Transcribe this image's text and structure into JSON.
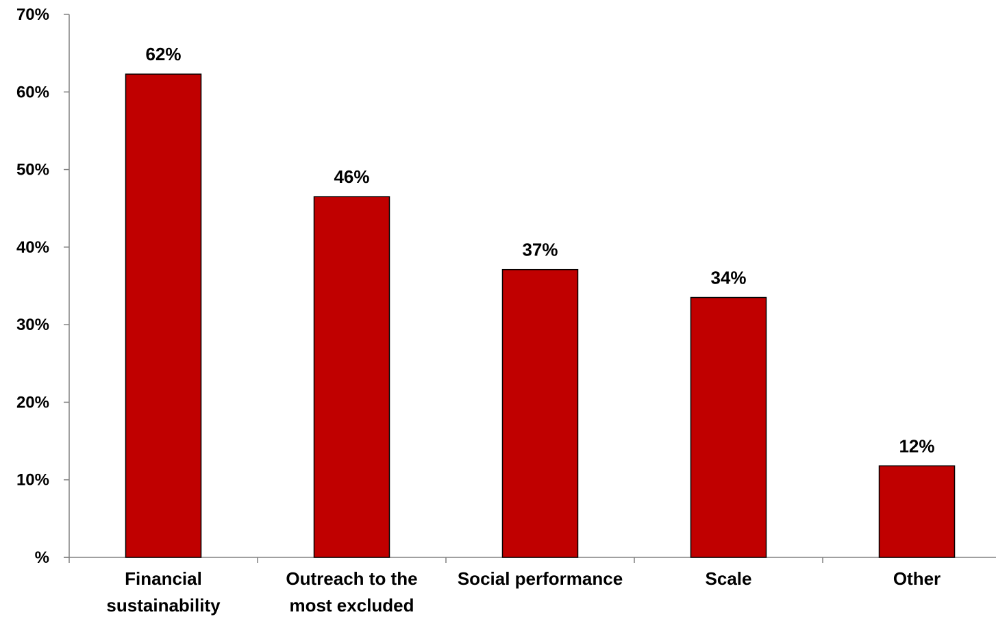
{
  "chart_data": {
    "type": "bar",
    "categories": [
      [
        "Financial",
        "sustainability"
      ],
      [
        "Outreach to the",
        "most excluded"
      ],
      [
        "Social performance"
      ],
      [
        "Scale"
      ],
      [
        "Other"
      ]
    ],
    "values": [
      62.3,
      46.5,
      37.1,
      33.5,
      11.8
    ],
    "data_labels": [
      "62%",
      "46%",
      "37%",
      "34%",
      "12%"
    ],
    "ylim": [
      0,
      70
    ],
    "yticks": [
      0,
      10,
      20,
      30,
      40,
      50,
      60,
      70
    ],
    "ytick_labels": [
      "%",
      "10%",
      "20%",
      "30%",
      "40%",
      "50%",
      "60%",
      "70%"
    ],
    "title": "",
    "xlabel": "",
    "ylabel": "",
    "grid": false,
    "legend": "none",
    "colors": {
      "bar_fill": "#c00000",
      "bar_stroke": "#000000",
      "axis": "#808080",
      "text": "#000000"
    }
  }
}
